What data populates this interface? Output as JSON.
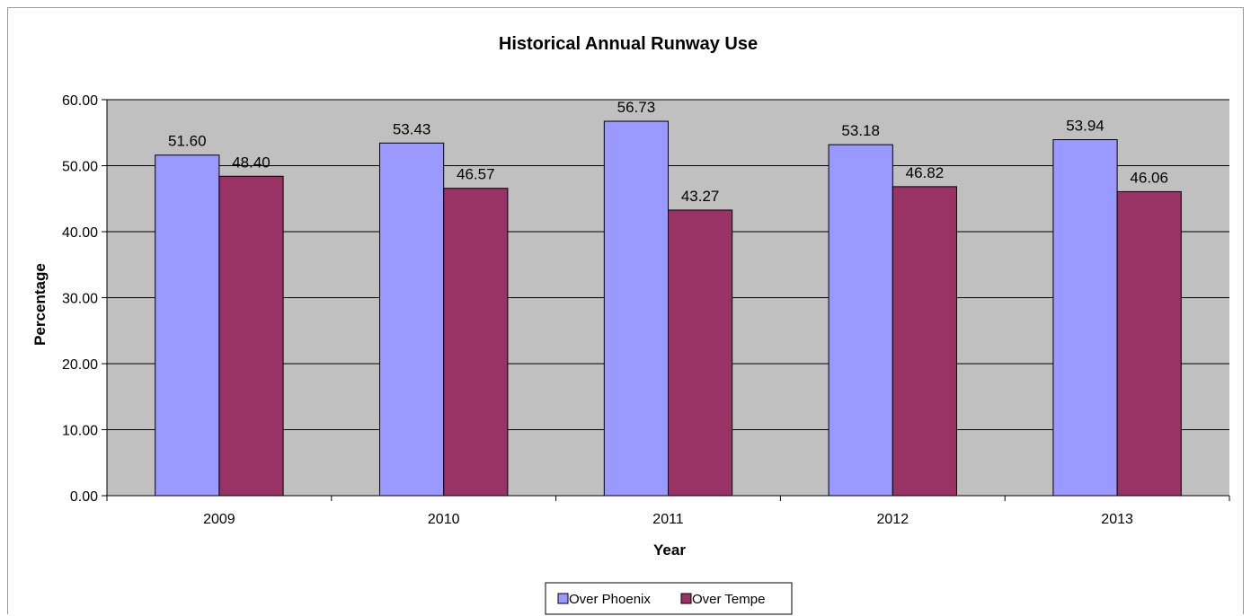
{
  "chart_data": {
    "type": "bar",
    "title": "Historical Annual Runway Use",
    "xlabel": "Year",
    "ylabel": "Percentage",
    "categories": [
      "2009",
      "2010",
      "2011",
      "2012",
      "2013"
    ],
    "series": [
      {
        "name": "Over Phoenix",
        "color": "#9999ff",
        "values": [
          51.6,
          53.43,
          56.73,
          53.18,
          53.94
        ],
        "labels": [
          "51.60",
          "53.43",
          "56.73",
          "53.18",
          "53.94"
        ]
      },
      {
        "name": "Over Tempe",
        "color": "#993366",
        "values": [
          48.4,
          46.57,
          43.27,
          46.82,
          46.06
        ],
        "labels": [
          "48.40",
          "46.57",
          "43.27",
          "46.82",
          "46.06"
        ]
      }
    ],
    "ylim": [
      0,
      60
    ],
    "yticks": [
      0,
      10,
      20,
      30,
      40,
      50,
      60
    ],
    "ytick_labels": [
      "0.00",
      "10.00",
      "20.00",
      "30.00",
      "40.00",
      "50.00",
      "60.00"
    ],
    "grid": true,
    "plot_background": "#c0c0c0",
    "legend_position": "bottom"
  }
}
